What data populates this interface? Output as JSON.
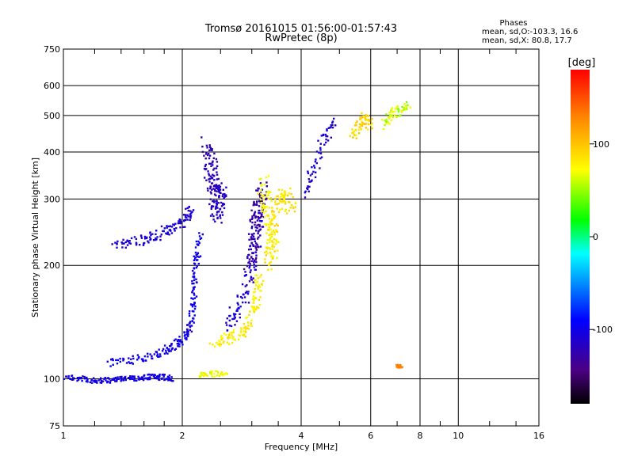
{
  "chart_data": {
    "type": "scatter",
    "title": "Tromsø 20161015 01:56:00-01:57:43",
    "subtitle": "RwPretec (8p)",
    "xlabel": "Frequency [MHz]",
    "ylabel": "Stationary phase Virtual Height [km]",
    "x_scale": "log",
    "y_scale": "log",
    "xlim": [
      1,
      16
    ],
    "ylim": [
      75,
      750
    ],
    "x_ticks": [
      1,
      2,
      4,
      6,
      8,
      10,
      16
    ],
    "x_tick_labels": [
      "1",
      "2",
      "4",
      "6",
      "8",
      "10",
      "16"
    ],
    "y_ticks": [
      75,
      100,
      200,
      300,
      400,
      500,
      600,
      750
    ],
    "y_tick_labels": [
      "75",
      "100",
      "200",
      "300",
      "400",
      "500",
      "600",
      "750"
    ],
    "grid": true,
    "colorbar": {
      "label": "[deg]",
      "range": [
        -180,
        180
      ],
      "ticks": [
        100,
        0,
        -100
      ],
      "tick_labels": [
        "100",
        "0",
        "-100"
      ]
    },
    "stats": {
      "heading": "Phases",
      "line_o": "mean, sd,O:-103.3, 16.6",
      "line_x": "mean, sd,X:  80.8, 17.7"
    },
    "traces": [
      {
        "mode": "O",
        "phase": -103,
        "spread": 8,
        "noise": 0.01,
        "points": [
          [
            1.0,
            101
          ],
          [
            1.1,
            100
          ],
          [
            1.2,
            99
          ],
          [
            1.3,
            99
          ],
          [
            1.4,
            100
          ],
          [
            1.5,
            100
          ],
          [
            1.6,
            101
          ],
          [
            1.7,
            101
          ],
          [
            1.8,
            101
          ],
          [
            1.9,
            100
          ]
        ]
      },
      {
        "mode": "O",
        "phase": -100,
        "spread": 10,
        "noise": 0.015,
        "points": [
          [
            1.3,
            110
          ],
          [
            1.5,
            112
          ],
          [
            1.7,
            115
          ],
          [
            1.85,
            120
          ],
          [
            1.95,
            125
          ],
          [
            2.05,
            130
          ],
          [
            2.1,
            140
          ],
          [
            2.13,
            160
          ],
          [
            2.15,
            185
          ],
          [
            2.18,
            210
          ],
          [
            2.22,
            245
          ]
        ]
      },
      {
        "mode": "O",
        "phase": -108,
        "spread": 10,
        "noise": 0.02,
        "points": [
          [
            1.35,
            225
          ],
          [
            1.5,
            230
          ],
          [
            1.65,
            235
          ],
          [
            1.8,
            245
          ],
          [
            1.95,
            255
          ],
          [
            2.05,
            270
          ],
          [
            2.1,
            280
          ]
        ]
      },
      {
        "mode": "O",
        "phase": -115,
        "spread": 10,
        "noise": 0.03,
        "points": [
          [
            2.35,
            360
          ],
          [
            2.38,
            320
          ],
          [
            2.42,
            290
          ],
          [
            2.45,
            270
          ],
          [
            2.5,
            300
          ],
          [
            2.55,
            330
          ]
        ]
      },
      {
        "mode": "O",
        "phase": -120,
        "spread": 10,
        "noise": 0.03,
        "points": [
          [
            2.3,
            420
          ],
          [
            2.35,
            380
          ],
          [
            2.4,
            340
          ],
          [
            2.45,
            300
          ]
        ]
      },
      {
        "mode": "O",
        "phase": -110,
        "spread": 10,
        "noise": 0.03,
        "points": [
          [
            2.6,
            140
          ],
          [
            2.75,
            150
          ],
          [
            2.9,
            170
          ],
          [
            3.0,
            200
          ],
          [
            3.05,
            230
          ],
          [
            3.1,
            260
          ],
          [
            3.15,
            290
          ]
        ]
      },
      {
        "mode": "O",
        "phase": -130,
        "spread": 10,
        "noise": 0.03,
        "points": [
          [
            2.95,
            190
          ],
          [
            3.0,
            220
          ],
          [
            3.05,
            250
          ],
          [
            3.1,
            280
          ],
          [
            3.15,
            300
          ],
          [
            3.2,
            320
          ]
        ]
      },
      {
        "mode": "O",
        "phase": -110,
        "spread": 12,
        "noise": 0.02,
        "points": [
          [
            4.1,
            310
          ],
          [
            4.3,
            360
          ],
          [
            4.6,
            440
          ],
          [
            4.9,
            480
          ]
        ]
      },
      {
        "mode": "X",
        "phase": 70,
        "spread": 12,
        "noise": 0.01,
        "points": [
          [
            2.2,
            102
          ],
          [
            2.4,
            103
          ],
          [
            2.6,
            103
          ]
        ]
      },
      {
        "mode": "X",
        "phase": 80,
        "spread": 12,
        "noise": 0.02,
        "points": [
          [
            2.4,
            125
          ],
          [
            2.6,
            128
          ],
          [
            2.8,
            132
          ],
          [
            2.95,
            140
          ],
          [
            3.05,
            155
          ],
          [
            3.1,
            170
          ],
          [
            3.15,
            190
          ]
        ]
      },
      {
        "mode": "X",
        "phase": 85,
        "spread": 12,
        "noise": 0.025,
        "points": [
          [
            3.3,
            200
          ],
          [
            3.35,
            230
          ],
          [
            3.4,
            260
          ],
          [
            3.5,
            290
          ],
          [
            3.6,
            320
          ],
          [
            3.7,
            300
          ],
          [
            3.8,
            280
          ]
        ]
      },
      {
        "mode": "X",
        "phase": 75,
        "spread": 12,
        "noise": 0.03,
        "points": [
          [
            3.2,
            330
          ],
          [
            3.25,
            300
          ],
          [
            3.3,
            270
          ],
          [
            3.35,
            240
          ],
          [
            3.4,
            215
          ]
        ]
      },
      {
        "mode": "X",
        "phase": 90,
        "spread": 15,
        "noise": 0.02,
        "points": [
          [
            5.4,
            440
          ],
          [
            5.6,
            470
          ],
          [
            5.8,
            500
          ],
          [
            6.0,
            470
          ]
        ]
      },
      {
        "mode": "X",
        "phase": 60,
        "spread": 20,
        "noise": 0.02,
        "points": [
          [
            6.5,
            470
          ],
          [
            6.8,
            500
          ],
          [
            7.1,
            520
          ],
          [
            7.5,
            530
          ]
        ]
      },
      {
        "mode": "X",
        "phase": 130,
        "spread": 5,
        "noise": 0.005,
        "points": [
          [
            7.0,
            108
          ],
          [
            7.1,
            108
          ],
          [
            7.2,
            108
          ]
        ]
      }
    ]
  }
}
